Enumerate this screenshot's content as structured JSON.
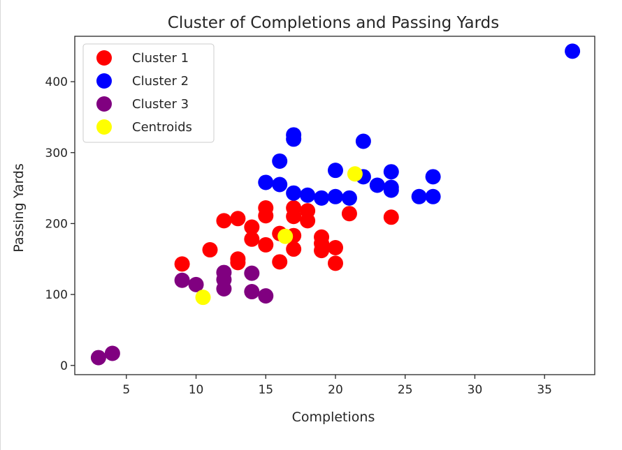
{
  "chart_data": {
    "type": "scatter",
    "title": "Cluster of Completions and Passing Yards",
    "xlabel": "Completions",
    "ylabel": "Passing Yards",
    "xlim": [
      1.3,
      38.6
    ],
    "ylim": [
      -13,
      464
    ],
    "xticks": [
      5,
      10,
      15,
      20,
      25,
      30,
      35
    ],
    "yticks": [
      0,
      100,
      200,
      300,
      400
    ],
    "grid": false,
    "legend_position": "top-left",
    "series": [
      {
        "name": "Cluster 1",
        "color": "#ff0000",
        "points": [
          [
            9,
            143
          ],
          [
            11,
            163
          ],
          [
            12,
            204
          ],
          [
            13,
            207
          ],
          [
            13,
            150
          ],
          [
            13,
            145
          ],
          [
            14,
            195
          ],
          [
            14,
            178
          ],
          [
            15,
            222
          ],
          [
            15,
            211
          ],
          [
            15,
            170
          ],
          [
            16,
            186
          ],
          [
            16,
            146
          ],
          [
            17,
            222
          ],
          [
            17,
            210
          ],
          [
            17,
            183
          ],
          [
            17,
            164
          ],
          [
            18,
            218
          ],
          [
            18,
            204
          ],
          [
            19,
            181
          ],
          [
            19,
            172
          ],
          [
            19,
            162
          ],
          [
            20,
            166
          ],
          [
            20,
            144
          ],
          [
            21,
            214
          ],
          [
            24,
            209
          ]
        ]
      },
      {
        "name": "Cluster 2",
        "color": "#0000ff",
        "points": [
          [
            15,
            258
          ],
          [
            16,
            288
          ],
          [
            16,
            255
          ],
          [
            17,
            325
          ],
          [
            17,
            319
          ],
          [
            17,
            243
          ],
          [
            18,
            240
          ],
          [
            19,
            236
          ],
          [
            20,
            275
          ],
          [
            20,
            238
          ],
          [
            21,
            236
          ],
          [
            22,
            316
          ],
          [
            22,
            266
          ],
          [
            23,
            254
          ],
          [
            24,
            273
          ],
          [
            24,
            251
          ],
          [
            24,
            247
          ],
          [
            26,
            238
          ],
          [
            27,
            266
          ],
          [
            27,
            238
          ],
          [
            37,
            443
          ]
        ]
      },
      {
        "name": "Cluster 3",
        "color": "#800080",
        "points": [
          [
            3,
            11
          ],
          [
            4,
            17
          ],
          [
            9,
            120
          ],
          [
            10,
            114
          ],
          [
            12,
            131
          ],
          [
            12,
            121
          ],
          [
            12,
            108
          ],
          [
            14,
            130
          ],
          [
            14,
            104
          ],
          [
            15,
            98
          ]
        ]
      },
      {
        "name": "Centroids",
        "color": "#ffff00",
        "points": [
          [
            16.4,
            182
          ],
          [
            21.4,
            270
          ],
          [
            10.5,
            96
          ]
        ]
      }
    ]
  }
}
